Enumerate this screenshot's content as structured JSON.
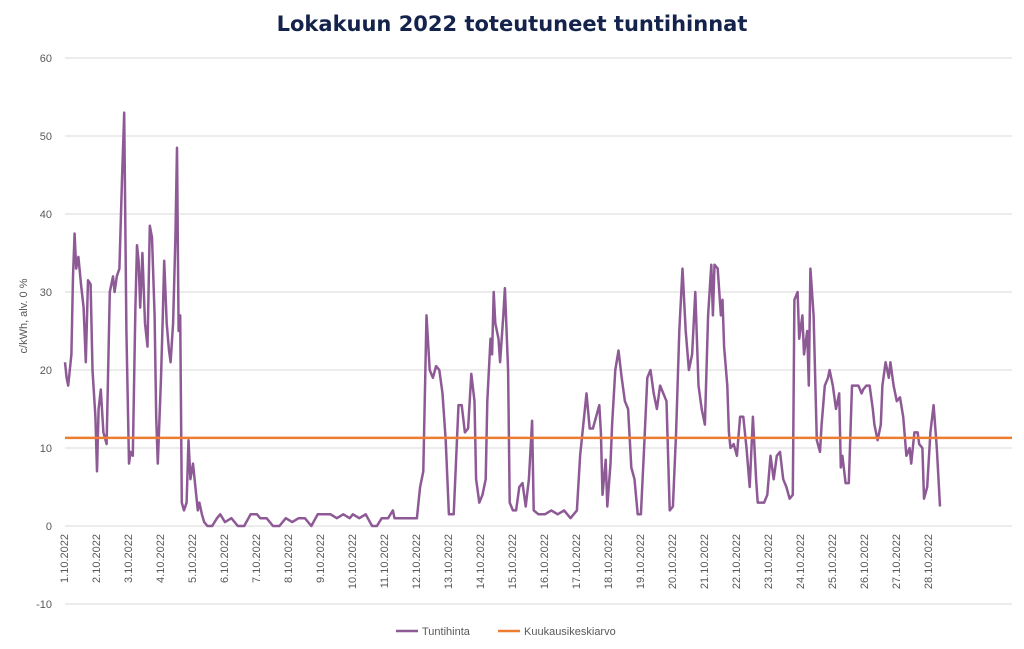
{
  "chart_data": {
    "type": "line",
    "title": "Lokakuun 2022 toteutuneet tuntihinnat",
    "ylabel": "c/kWh, alv. 0 %",
    "xlabel": "",
    "ylim": [
      -10,
      60
    ],
    "yticks": [
      -10,
      0,
      10,
      20,
      30,
      40,
      50,
      60
    ],
    "grid": true,
    "legend_position": "bottom",
    "x_tick_labels": [
      "1.10.2022",
      "2.10.2022",
      "3.10.2022",
      "4.10.2022",
      "5.10.2022",
      "6.10.2022",
      "7.10.2022",
      "8.10.2022",
      "9.10.2022",
      "10.10.2022",
      "11.10.2022",
      "12.10.2022",
      "13.10.2022",
      "14.10.2022",
      "15.10.2022",
      "16.10.2022",
      "17.10.2022",
      "18.10.2022",
      "19.10.2022",
      "20.10.2022",
      "21.10.2022",
      "22.10.2022",
      "23.10.2022",
      "24.10.2022",
      "25.10.2022",
      "26.10.2022",
      "27.10.2022",
      "28.10.2022"
    ],
    "series": [
      {
        "name": "Tuntihinta",
        "color": "#8e5a96",
        "points": [
          [
            0,
            21
          ],
          [
            0.05,
            19
          ],
          [
            0.1,
            18
          ],
          [
            0.2,
            22
          ],
          [
            0.25,
            32
          ],
          [
            0.3,
            37.5
          ],
          [
            0.35,
            33
          ],
          [
            0.42,
            34.5
          ],
          [
            0.5,
            31
          ],
          [
            0.58,
            28
          ],
          [
            0.65,
            21
          ],
          [
            0.72,
            31.5
          ],
          [
            0.8,
            31
          ],
          [
            0.86,
            20
          ],
          [
            0.95,
            14
          ],
          [
            1.0,
            7
          ],
          [
            1.05,
            15
          ],
          [
            1.12,
            17.5
          ],
          [
            1.2,
            12
          ],
          [
            1.3,
            10.5
          ],
          [
            1.4,
            30
          ],
          [
            1.5,
            32
          ],
          [
            1.55,
            30
          ],
          [
            1.62,
            32
          ],
          [
            1.7,
            33
          ],
          [
            1.78,
            44
          ],
          [
            1.85,
            53
          ],
          [
            1.92,
            25
          ],
          [
            2.0,
            8
          ],
          [
            2.05,
            9.5
          ],
          [
            2.12,
            9
          ],
          [
            2.2,
            28
          ],
          [
            2.25,
            36
          ],
          [
            2.3,
            34
          ],
          [
            2.35,
            28
          ],
          [
            2.42,
            35
          ],
          [
            2.5,
            26
          ],
          [
            2.58,
            23
          ],
          [
            2.65,
            38.5
          ],
          [
            2.72,
            37
          ],
          [
            2.8,
            27
          ],
          [
            2.85,
            14
          ],
          [
            2.9,
            8
          ],
          [
            3.0,
            19
          ],
          [
            3.05,
            26
          ],
          [
            3.1,
            34
          ],
          [
            3.18,
            26
          ],
          [
            3.25,
            22.5
          ],
          [
            3.3,
            21
          ],
          [
            3.38,
            26
          ],
          [
            3.45,
            37
          ],
          [
            3.5,
            48.5
          ],
          [
            3.55,
            25
          ],
          [
            3.6,
            27
          ],
          [
            3.65,
            3
          ],
          [
            3.72,
            2
          ],
          [
            3.8,
            3
          ],
          [
            3.86,
            11
          ],
          [
            3.92,
            6
          ],
          [
            4.0,
            8
          ],
          [
            4.1,
            4
          ],
          [
            4.15,
            2
          ],
          [
            4.2,
            3
          ],
          [
            4.28,
            1.5
          ],
          [
            4.35,
            0.5
          ],
          [
            4.45,
            0
          ],
          [
            4.6,
            0
          ],
          [
            4.75,
            1
          ],
          [
            4.85,
            1.5
          ],
          [
            5.0,
            0.5
          ],
          [
            5.2,
            1
          ],
          [
            5.4,
            0
          ],
          [
            5.6,
            0
          ],
          [
            5.8,
            1.5
          ],
          [
            6.0,
            1.5
          ],
          [
            6.1,
            1
          ],
          [
            6.3,
            1
          ],
          [
            6.5,
            0
          ],
          [
            6.7,
            0
          ],
          [
            6.9,
            1
          ],
          [
            7.1,
            0.5
          ],
          [
            7.3,
            1
          ],
          [
            7.5,
            1
          ],
          [
            7.7,
            0
          ],
          [
            7.9,
            1.5
          ],
          [
            8.1,
            1.5
          ],
          [
            8.3,
            1.5
          ],
          [
            8.5,
            1
          ],
          [
            8.7,
            1.5
          ],
          [
            8.9,
            1
          ],
          [
            9.0,
            1.5
          ],
          [
            9.2,
            1
          ],
          [
            9.4,
            1.5
          ],
          [
            9.6,
            0
          ],
          [
            9.75,
            0
          ],
          [
            9.9,
            1
          ],
          [
            10.1,
            1
          ],
          [
            10.25,
            2
          ],
          [
            10.3,
            1
          ],
          [
            10.5,
            1
          ],
          [
            10.7,
            1
          ],
          [
            10.85,
            1
          ],
          [
            11.0,
            1
          ],
          [
            11.1,
            5
          ],
          [
            11.2,
            7
          ],
          [
            11.3,
            27
          ],
          [
            11.4,
            20
          ],
          [
            11.5,
            19
          ],
          [
            11.6,
            20.5
          ],
          [
            11.7,
            20
          ],
          [
            11.8,
            17
          ],
          [
            11.9,
            11
          ],
          [
            12.0,
            1.5
          ],
          [
            12.15,
            1.5
          ],
          [
            12.3,
            15.5
          ],
          [
            12.4,
            15.5
          ],
          [
            12.5,
            12
          ],
          [
            12.6,
            12.5
          ],
          [
            12.7,
            19.5
          ],
          [
            12.8,
            16
          ],
          [
            12.85,
            6
          ],
          [
            12.95,
            3
          ],
          [
            13.05,
            4
          ],
          [
            13.15,
            6
          ],
          [
            13.2,
            16
          ],
          [
            13.3,
            24
          ],
          [
            13.35,
            22
          ],
          [
            13.4,
            30
          ],
          [
            13.45,
            26
          ],
          [
            13.55,
            24
          ],
          [
            13.6,
            21
          ],
          [
            13.7,
            27
          ],
          [
            13.75,
            30.5
          ],
          [
            13.85,
            20
          ],
          [
            13.9,
            3
          ],
          [
            14.0,
            2
          ],
          [
            14.1,
            2
          ],
          [
            14.2,
            5
          ],
          [
            14.3,
            5.5
          ],
          [
            14.4,
            2.5
          ],
          [
            14.5,
            6
          ],
          [
            14.6,
            13.5
          ],
          [
            14.65,
            2
          ],
          [
            14.8,
            1.5
          ],
          [
            15.0,
            1.5
          ],
          [
            15.2,
            2
          ],
          [
            15.4,
            1.5
          ],
          [
            15.6,
            2
          ],
          [
            15.8,
            1
          ],
          [
            15.9,
            1.5
          ],
          [
            16.0,
            2
          ],
          [
            16.1,
            9
          ],
          [
            16.2,
            13
          ],
          [
            16.3,
            17
          ],
          [
            16.4,
            12.5
          ],
          [
            16.5,
            12.5
          ],
          [
            16.6,
            14
          ],
          [
            16.7,
            15.5
          ],
          [
            16.75,
            12
          ],
          [
            16.8,
            4
          ],
          [
            16.9,
            8.5
          ],
          [
            16.95,
            2.5
          ],
          [
            17.05,
            8
          ],
          [
            17.1,
            13
          ],
          [
            17.2,
            20
          ],
          [
            17.3,
            22.5
          ],
          [
            17.4,
            19
          ],
          [
            17.5,
            16
          ],
          [
            17.6,
            15
          ],
          [
            17.7,
            7.5
          ],
          [
            17.8,
            6
          ],
          [
            17.9,
            1.5
          ],
          [
            18.0,
            1.5
          ],
          [
            18.1,
            10
          ],
          [
            18.2,
            19
          ],
          [
            18.3,
            20
          ],
          [
            18.4,
            17
          ],
          [
            18.5,
            15
          ],
          [
            18.6,
            18
          ],
          [
            18.7,
            17
          ],
          [
            18.8,
            16
          ],
          [
            18.9,
            2
          ],
          [
            19.0,
            2.5
          ],
          [
            19.1,
            12
          ],
          [
            19.2,
            25
          ],
          [
            19.3,
            33
          ],
          [
            19.4,
            25
          ],
          [
            19.5,
            20
          ],
          [
            19.6,
            22
          ],
          [
            19.7,
            30
          ],
          [
            19.8,
            18
          ],
          [
            19.9,
            15
          ],
          [
            20.0,
            13
          ],
          [
            20.1,
            27
          ],
          [
            20.2,
            33.5
          ],
          [
            20.25,
            27
          ],
          [
            20.3,
            33.5
          ],
          [
            20.4,
            33
          ],
          [
            20.5,
            27
          ],
          [
            20.55,
            29
          ],
          [
            20.6,
            23
          ],
          [
            20.7,
            18
          ],
          [
            20.75,
            12
          ],
          [
            20.8,
            10
          ],
          [
            20.9,
            10.5
          ],
          [
            21.0,
            9
          ],
          [
            21.1,
            14
          ],
          [
            21.2,
            14
          ],
          [
            21.3,
            10
          ],
          [
            21.4,
            5
          ],
          [
            21.5,
            14
          ],
          [
            21.6,
            6
          ],
          [
            21.65,
            3
          ],
          [
            21.75,
            3
          ],
          [
            21.85,
            3
          ],
          [
            21.95,
            4
          ],
          [
            22.05,
            9
          ],
          [
            22.15,
            6
          ],
          [
            22.25,
            9
          ],
          [
            22.35,
            9.5
          ],
          [
            22.45,
            6
          ],
          [
            22.55,
            5
          ],
          [
            22.65,
            3.5
          ],
          [
            22.75,
            4
          ],
          [
            22.8,
            29
          ],
          [
            22.9,
            30
          ],
          [
            22.95,
            24
          ],
          [
            23.05,
            27
          ],
          [
            23.1,
            22
          ],
          [
            23.2,
            25
          ],
          [
            23.25,
            18
          ],
          [
            23.3,
            33
          ],
          [
            23.4,
            27
          ],
          [
            23.5,
            11
          ],
          [
            23.6,
            9.5
          ],
          [
            23.65,
            13
          ],
          [
            23.75,
            18
          ],
          [
            23.85,
            19
          ],
          [
            23.9,
            20
          ],
          [
            24.0,
            18
          ],
          [
            24.1,
            15
          ],
          [
            24.2,
            17
          ],
          [
            24.25,
            7.5
          ],
          [
            24.3,
            9
          ],
          [
            24.4,
            5.5
          ],
          [
            24.5,
            5.5
          ],
          [
            24.6,
            18
          ],
          [
            24.7,
            18
          ],
          [
            24.8,
            18
          ],
          [
            24.9,
            17
          ],
          [
            24.95,
            17.5
          ],
          [
            25.05,
            18
          ],
          [
            25.15,
            18
          ],
          [
            25.25,
            15
          ],
          [
            25.3,
            13
          ],
          [
            25.4,
            11
          ],
          [
            25.5,
            13
          ],
          [
            25.55,
            18
          ],
          [
            25.65,
            21
          ],
          [
            25.75,
            19
          ],
          [
            25.8,
            21
          ],
          [
            25.9,
            18
          ],
          [
            26.0,
            16
          ],
          [
            26.1,
            16.5
          ],
          [
            26.2,
            14
          ],
          [
            26.3,
            9
          ],
          [
            26.4,
            10
          ],
          [
            26.45,
            8
          ],
          [
            26.55,
            12
          ],
          [
            26.65,
            12
          ],
          [
            26.7,
            10.5
          ],
          [
            26.8,
            10
          ],
          [
            26.85,
            3.5
          ],
          [
            26.95,
            5
          ],
          [
            27.05,
            12
          ],
          [
            27.15,
            15.5
          ],
          [
            27.25,
            10
          ],
          [
            27.35,
            2.5
          ]
        ]
      },
      {
        "name": "Kuukausikeskiarvo",
        "color": "#ed7d31",
        "value": 11.3
      }
    ]
  }
}
